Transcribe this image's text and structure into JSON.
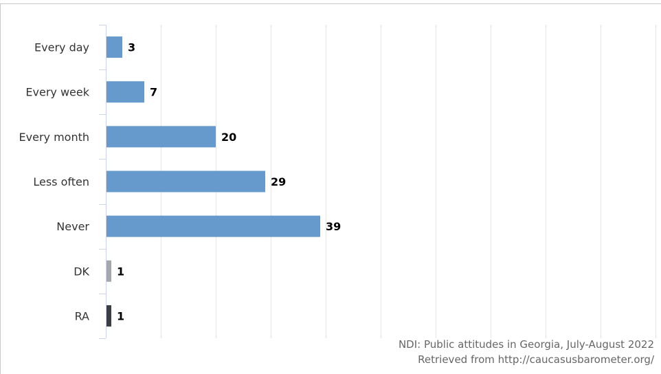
{
  "chart_data": {
    "type": "bar",
    "orientation": "horizontal",
    "categories": [
      "Every day",
      "Every week",
      "Every month",
      "Less often",
      "Never",
      "DK",
      "RA"
    ],
    "values": [
      3,
      7,
      20,
      29,
      39,
      1,
      1
    ],
    "colors": [
      "#6699cc",
      "#6699cc",
      "#6699cc",
      "#6699cc",
      "#6699cc",
      "#a6a6ab",
      "#3d3d42"
    ],
    "xlim": [
      0,
      100
    ],
    "grid": true,
    "legend": "none"
  },
  "credits": {
    "line1": "NDI: Public attitudes in Georgia, July-August 2022",
    "line2": "Retrieved from http://caucasusbarometer.org/"
  }
}
